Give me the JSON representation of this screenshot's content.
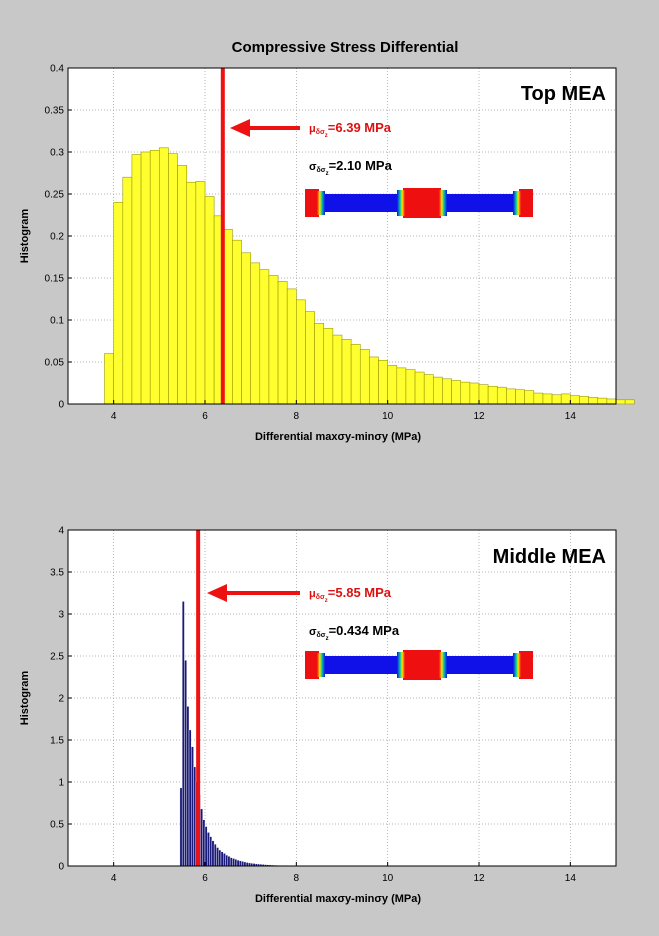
{
  "figure_title": "Compressive Stress Differential",
  "colors": {
    "figure_bg": "#c8c8c8",
    "axes_bg": "#ffffff",
    "top_bar_fill": "#ffff30",
    "top_bar_edge": "#9a9a00",
    "mid_bar_fill": "#1a1a7a",
    "mean_line": "#ee1111",
    "text_red": "#dd1111",
    "text_black": "#000000",
    "beam_blue": "#1010e8",
    "beam_red": "#ee1010"
  },
  "chart_data": [
    {
      "type": "bar",
      "panel_label": "Top MEA",
      "xlabel": "Differential maxσy-minσy (MPa)",
      "ylabel": "Histogram",
      "xlim": [
        3.0,
        15.0
      ],
      "ylim": [
        0,
        0.4
      ],
      "xticks": [
        "4",
        "6",
        "8",
        "10",
        "12",
        "14"
      ],
      "xtick_values": [
        4,
        6,
        8,
        10,
        12,
        14
      ],
      "yticks": [
        "0",
        "0.05",
        "0.1",
        "0.15",
        "0.2",
        "0.25",
        "0.3",
        "0.35",
        "0.4"
      ],
      "ytick_values": [
        0,
        0.05,
        0.1,
        0.15,
        0.2,
        0.25,
        0.3,
        0.35,
        0.4
      ],
      "grid": true,
      "bin_start": 3.8,
      "bin_width": 0.2,
      "values": [
        0.06,
        0.24,
        0.27,
        0.297,
        0.3,
        0.302,
        0.305,
        0.298,
        0.284,
        0.264,
        0.265,
        0.247,
        0.224,
        0.208,
        0.195,
        0.18,
        0.168,
        0.16,
        0.153,
        0.146,
        0.137,
        0.124,
        0.11,
        0.096,
        0.09,
        0.082,
        0.077,
        0.071,
        0.065,
        0.056,
        0.052,
        0.046,
        0.043,
        0.041,
        0.038,
        0.035,
        0.032,
        0.03,
        0.028,
        0.026,
        0.025,
        0.023,
        0.021,
        0.02,
        0.018,
        0.017,
        0.016,
        0.013,
        0.012,
        0.011,
        0.012,
        0.01,
        0.009,
        0.008,
        0.007,
        0.006,
        0.005,
        0.005
      ],
      "mean_line_x": 6.39,
      "mean_label": "=6.39 MPa",
      "sigma_label": "=2.10 MPa"
    },
    {
      "type": "bar",
      "panel_label": "Middle MEA",
      "xlabel": "Differential maxσy-minσy (MPa)",
      "ylabel": "Histogram",
      "xlim": [
        3.0,
        15.0
      ],
      "ylim": [
        0,
        4
      ],
      "xticks": [
        "4",
        "6",
        "8",
        "10",
        "12",
        "14"
      ],
      "xtick_values": [
        4,
        6,
        8,
        10,
        12,
        14
      ],
      "yticks": [
        "0",
        "0.5",
        "1",
        "1.5",
        "2",
        "2.5",
        "3",
        "3.5",
        "4"
      ],
      "ytick_values": [
        0,
        0.5,
        1,
        1.5,
        2,
        2.5,
        3,
        3.5,
        4
      ],
      "grid": true,
      "bin_start": 5.45,
      "bin_width": 0.05,
      "values": [
        0.93,
        3.15,
        2.45,
        1.9,
        1.62,
        1.42,
        1.18,
        1.0,
        0.85,
        0.68,
        0.55,
        0.47,
        0.4,
        0.35,
        0.3,
        0.26,
        0.22,
        0.19,
        0.17,
        0.15,
        0.13,
        0.115,
        0.1,
        0.09,
        0.08,
        0.07,
        0.062,
        0.055,
        0.048,
        0.042,
        0.037,
        0.033,
        0.03,
        0.027,
        0.024,
        0.021,
        0.019,
        0.017,
        0.015,
        0.013,
        0.012,
        0.011,
        0.01,
        0.009,
        0.008,
        0.007,
        0.007,
        0.006,
        0.006,
        0.005,
        0.005,
        0.004,
        0.004,
        0.004,
        0.003,
        0.003,
        0.003,
        0.002,
        0.002,
        0.002,
        0.002,
        0.002,
        0.002,
        0.001,
        0.001,
        0.001,
        0.001,
        0.001,
        0.001,
        0.001,
        0.001,
        0.001,
        0.001,
        0.001,
        0.001,
        0.001,
        0.001,
        0.001,
        0.001,
        0.001
      ],
      "mean_line_x": 5.85,
      "mean_label": "=5.85 MPa",
      "sigma_label": "=0.434 MPa"
    }
  ]
}
